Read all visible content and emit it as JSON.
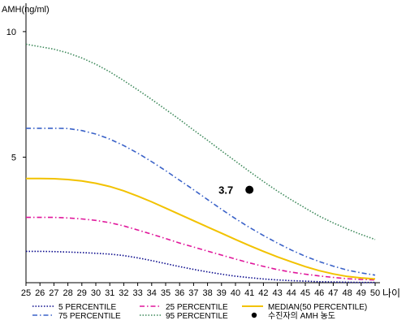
{
  "chart_data": {
    "type": "line",
    "ylabel": "AMH(ng/ml)",
    "xlabel": "나이",
    "x": [
      25,
      26,
      27,
      28,
      29,
      30,
      31,
      32,
      33,
      34,
      35,
      36,
      37,
      38,
      39,
      40,
      41,
      42,
      43,
      44,
      45,
      46,
      47,
      48,
      49,
      50
    ],
    "xlim": [
      25,
      50
    ],
    "ylim": [
      0,
      11
    ],
    "yticks": [
      5,
      10
    ],
    "grid": false,
    "legend_position": "bottom",
    "series": [
      {
        "name": "5 PERCENTILE",
        "color": "#0a0a8c",
        "style": "dotted",
        "values": [
          1.25,
          1.25,
          1.24,
          1.22,
          1.2,
          1.17,
          1.14,
          1.08,
          0.99,
          0.88,
          0.76,
          0.64,
          0.53,
          0.43,
          0.34,
          0.26,
          0.2,
          0.15,
          0.11,
          0.08,
          0.06,
          0.04,
          0.03,
          0.02,
          0.01,
          0.01
        ]
      },
      {
        "name": "25 PERCENTILE",
        "color": "#e0169b",
        "style": "dashdot",
        "values": [
          2.6,
          2.6,
          2.6,
          2.58,
          2.54,
          2.48,
          2.39,
          2.26,
          2.1,
          1.93,
          1.76,
          1.58,
          1.42,
          1.26,
          1.1,
          0.94,
          0.79,
          0.65,
          0.52,
          0.42,
          0.34,
          0.27,
          0.21,
          0.16,
          0.13,
          0.11
        ]
      },
      {
        "name": "MEDIAN(50 PERCENTILE)",
        "color": "#f2c200",
        "style": "solid",
        "values": [
          4.15,
          4.15,
          4.14,
          4.11,
          4.05,
          3.96,
          3.83,
          3.66,
          3.45,
          3.22,
          2.97,
          2.72,
          2.47,
          2.22,
          1.97,
          1.72,
          1.48,
          1.25,
          1.03,
          0.83,
          0.64,
          0.48,
          0.35,
          0.25,
          0.19,
          0.15
        ]
      },
      {
        "name": "75 PERCENTILE",
        "color": "#3a62c8",
        "style": "dashdot",
        "values": [
          6.15,
          6.15,
          6.15,
          6.14,
          6.06,
          5.92,
          5.72,
          5.46,
          5.16,
          4.82,
          4.46,
          4.08,
          3.7,
          3.31,
          2.92,
          2.55,
          2.2,
          1.88,
          1.58,
          1.3,
          1.05,
          0.84,
          0.66,
          0.5,
          0.39,
          0.3
        ]
      },
      {
        "name": "95 PERCENTILE",
        "color": "#3f8a5c",
        "style": "dotted",
        "values": [
          9.5,
          9.4,
          9.3,
          9.15,
          8.95,
          8.7,
          8.4,
          8.05,
          7.68,
          7.3,
          6.9,
          6.5,
          6.08,
          5.67,
          5.25,
          4.84,
          4.43,
          4.03,
          3.65,
          3.3,
          2.97,
          2.65,
          2.38,
          2.14,
          1.92,
          1.72
        ]
      }
    ],
    "marker": {
      "name": "수진자의 AMH 농도",
      "x": 41,
      "y": 3.7,
      "label": "3.7",
      "color": "#000000"
    }
  }
}
